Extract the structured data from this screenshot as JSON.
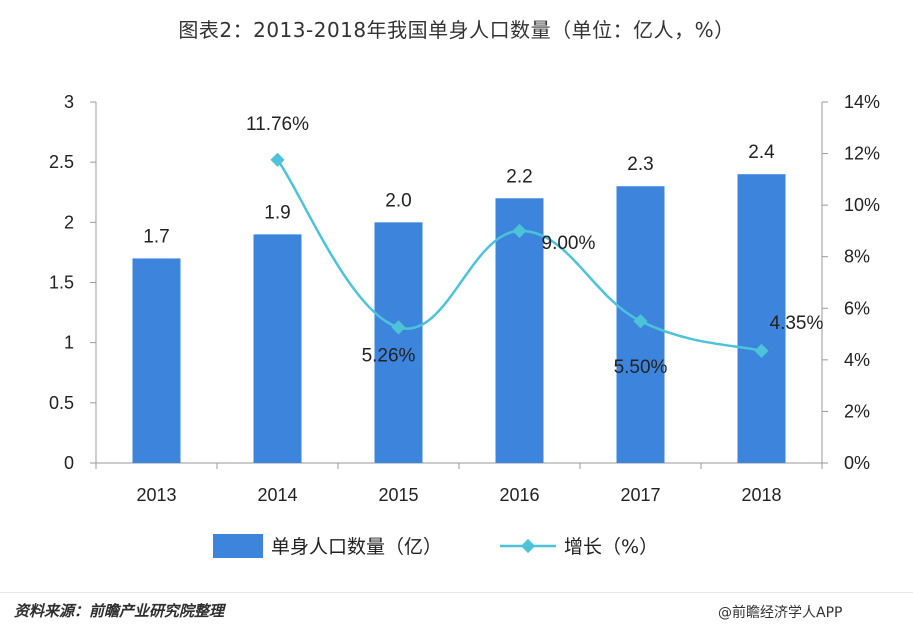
{
  "title": "图表2：2013-2018年我国单身人口数量（单位：亿人，%）",
  "chart_data": {
    "type": "bar+line",
    "categories": [
      "2013",
      "2014",
      "2015",
      "2016",
      "2017",
      "2018"
    ],
    "series": [
      {
        "name": "单身人口数量（亿）",
        "type": "bar",
        "axis": "left",
        "color": "#3d85dc",
        "values": [
          1.7,
          1.9,
          2.0,
          2.2,
          2.3,
          2.4
        ],
        "labels": [
          "1.7",
          "1.9",
          "2.0",
          "2.2",
          "2.3",
          "2.4"
        ]
      },
      {
        "name": "增长（%）",
        "type": "line",
        "axis": "right",
        "color": "#4cc3d9",
        "values": [
          null,
          11.76,
          5.26,
          9.0,
          5.5,
          4.35
        ],
        "labels": [
          null,
          "11.76%",
          "5.26%",
          "9.00%",
          "5.50%",
          "4.35%"
        ]
      }
    ],
    "y_left": {
      "lim": [
        0,
        3
      ],
      "ticks": [
        "0",
        "0.5",
        "1",
        "1.5",
        "2",
        "2.5",
        "3"
      ]
    },
    "y_right": {
      "lim": [
        0,
        14
      ],
      "ticks": [
        "0%",
        "2%",
        "4%",
        "6%",
        "8%",
        "10%",
        "12%",
        "14%"
      ]
    },
    "legend": "bottom"
  },
  "legend": {
    "bar_label": "单身人口数量（亿）",
    "line_label": "增长（%）"
  },
  "source": "资料来源：前瞻产业研究院整理",
  "watermark": "@前瞻经济学人APP"
}
